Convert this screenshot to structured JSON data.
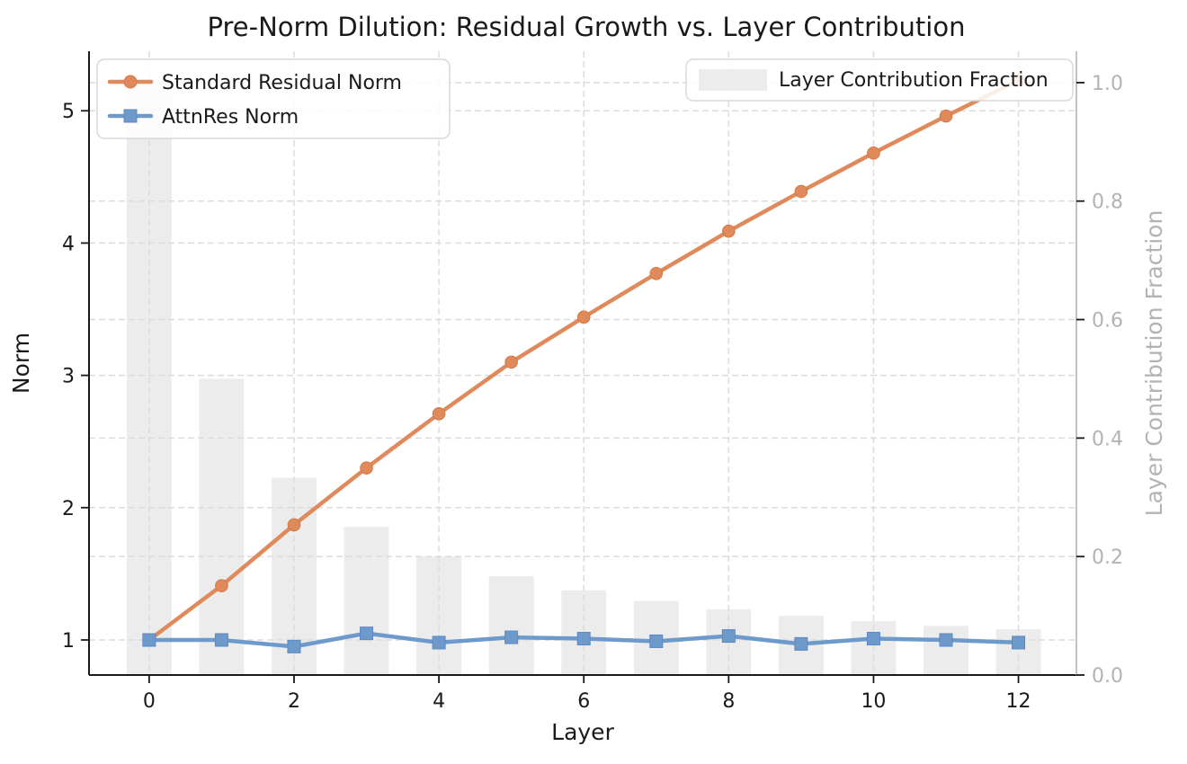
{
  "chart_data": {
    "type": "line+bar",
    "title": "Pre-Norm Dilution: Residual Growth vs. Layer Contribution",
    "xlabel": "Layer",
    "ylabel_left": "Norm",
    "ylabel_right": "Layer Contribution Fraction",
    "x": [
      0,
      1,
      2,
      3,
      4,
      5,
      6,
      7,
      8,
      9,
      10,
      11,
      12
    ],
    "series": [
      {
        "name": "Standard Residual Norm",
        "type": "line",
        "axis": "left",
        "marker": "circle",
        "color": "#e08a5c",
        "marker_edge": "#d07a48",
        "values": [
          1.0,
          1.41,
          1.87,
          2.3,
          2.71,
          3.1,
          3.44,
          3.77,
          4.09,
          4.39,
          4.68,
          4.96,
          5.23
        ]
      },
      {
        "name": "AttnRes Norm",
        "type": "line",
        "axis": "left",
        "marker": "square",
        "color": "#6d9acb",
        "marker_edge": "#5c88c5",
        "values": [
          1.0,
          1.0,
          0.95,
          1.05,
          0.98,
          1.02,
          1.01,
          0.99,
          1.03,
          0.97,
          1.01,
          1.0,
          0.98
        ]
      },
      {
        "name": "Layer Contribution Fraction",
        "type": "bar",
        "axis": "right",
        "color": "#dcdcdc",
        "bar_opacity": 0.55,
        "bar_width_units": 0.62,
        "values": [
          1.0,
          0.5,
          0.333,
          0.25,
          0.2,
          0.167,
          0.143,
          0.125,
          0.111,
          0.1,
          0.091,
          0.083,
          0.077
        ]
      }
    ],
    "xticks": [
      0,
      2,
      4,
      6,
      8,
      10,
      12
    ],
    "yticks_left": [
      "1",
      "2",
      "3",
      "4",
      "5"
    ],
    "yticks_left_values": [
      1,
      2,
      3,
      4,
      5
    ],
    "yticks_right": [
      "0.0",
      "0.2",
      "0.4",
      "0.6",
      "0.8",
      "1.0"
    ],
    "yticks_right_values": [
      0.0,
      0.2,
      0.4,
      0.6,
      0.8,
      1.0
    ],
    "xlim": [
      -0.83,
      12.8
    ],
    "ylim_left": [
      0.735,
      5.45
    ],
    "ylim_right": [
      0.0,
      1.053
    ],
    "grid": true,
    "grid_color": "#dcdcdc",
    "legend_left_position": "upper left",
    "legend_right_position": "upper right"
  },
  "colors": {
    "background": "#ffffff",
    "text": "#1a1a1a",
    "right_axis": "#b3b3b3",
    "grid": "#dcdcdc",
    "orange": "#e08a5c",
    "blue": "#6d9acb",
    "bar_gray": "#dcdcdc"
  }
}
